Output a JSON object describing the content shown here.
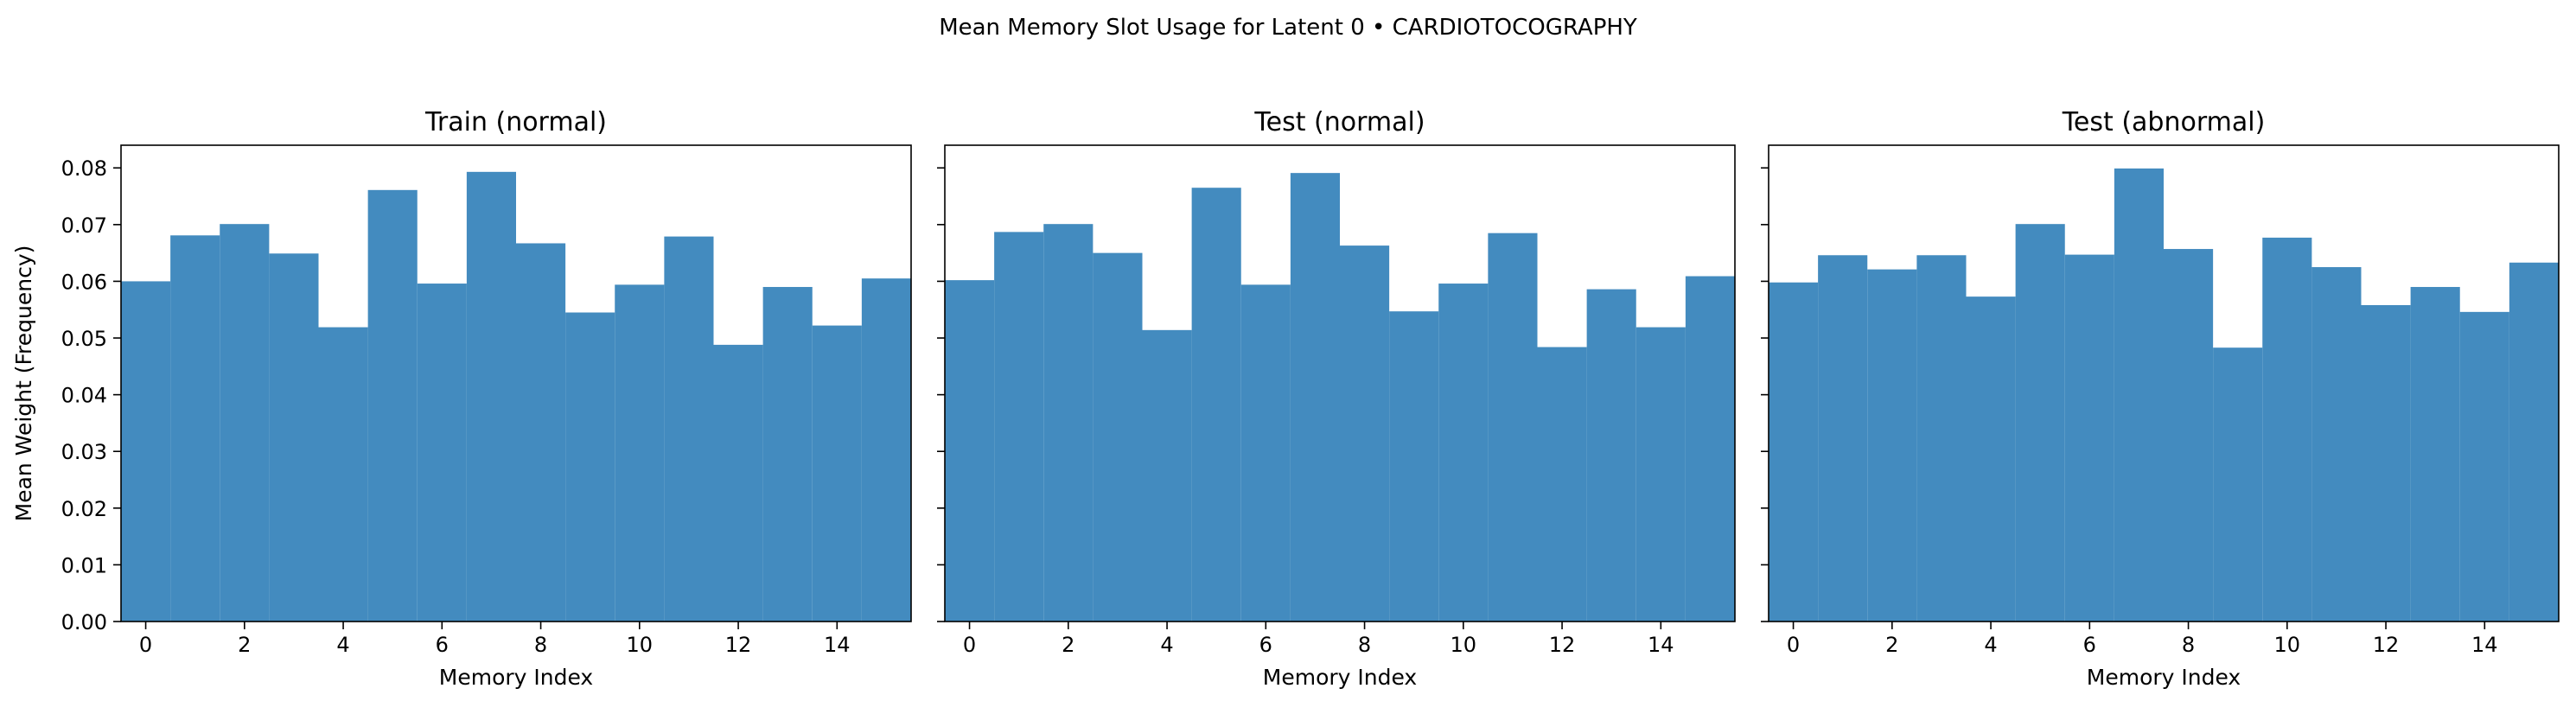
{
  "figure": {
    "suptitle": "Mean Memory Slot Usage for Latent 0 • CARDIOTOCOGRAPHY"
  },
  "chart_data": [
    {
      "type": "bar",
      "title": "Train (normal)",
      "xlabel": "Memory Index",
      "ylabel": "Mean Weight (Frequency)",
      "x": [
        0,
        1,
        2,
        3,
        4,
        5,
        6,
        7,
        8,
        9,
        10,
        11,
        12,
        13,
        14,
        15
      ],
      "values": [
        0.06,
        0.0681,
        0.0701,
        0.0649,
        0.0519,
        0.0761,
        0.0596,
        0.0793,
        0.0667,
        0.0545,
        0.0594,
        0.0679,
        0.0488,
        0.059,
        0.0522,
        0.0605
      ],
      "xlim": [
        -0.5,
        15.5
      ],
      "ylim": [
        0,
        0.084
      ],
      "xticks": [
        0,
        2,
        4,
        6,
        8,
        10,
        12,
        14
      ],
      "yticks": [
        "0.00",
        "0.01",
        "0.02",
        "0.03",
        "0.04",
        "0.05",
        "0.06",
        "0.07",
        "0.08"
      ],
      "color": "#438bbf",
      "grid": false
    },
    {
      "type": "bar",
      "title": "Test (normal)",
      "xlabel": "Memory Index",
      "ylabel": "",
      "x": [
        0,
        1,
        2,
        3,
        4,
        5,
        6,
        7,
        8,
        9,
        10,
        11,
        12,
        13,
        14,
        15
      ],
      "values": [
        0.0602,
        0.0687,
        0.0701,
        0.065,
        0.0514,
        0.0765,
        0.0594,
        0.0791,
        0.0663,
        0.0547,
        0.0596,
        0.0685,
        0.0484,
        0.0586,
        0.0519,
        0.0609
      ],
      "xlim": [
        -0.5,
        15.5
      ],
      "ylim": [
        0,
        0.084
      ],
      "xticks": [
        0,
        2,
        4,
        6,
        8,
        10,
        12,
        14
      ],
      "yticks": [
        "0.00",
        "0.01",
        "0.02",
        "0.03",
        "0.04",
        "0.05",
        "0.06",
        "0.07",
        "0.08"
      ],
      "color": "#438bbf",
      "grid": false
    },
    {
      "type": "bar",
      "title": "Test (abnormal)",
      "xlabel": "Memory Index",
      "ylabel": "",
      "x": [
        0,
        1,
        2,
        3,
        4,
        5,
        6,
        7,
        8,
        9,
        10,
        11,
        12,
        13,
        14,
        15
      ],
      "values": [
        0.0598,
        0.0646,
        0.0621,
        0.0646,
        0.0573,
        0.0701,
        0.0647,
        0.0799,
        0.0657,
        0.0483,
        0.0677,
        0.0625,
        0.0558,
        0.059,
        0.0546,
        0.0633
      ],
      "xlim": [
        -0.5,
        15.5
      ],
      "ylim": [
        0,
        0.084
      ],
      "xticks": [
        0,
        2,
        4,
        6,
        8,
        10,
        12,
        14
      ],
      "yticks": [
        "0.00",
        "0.01",
        "0.02",
        "0.03",
        "0.04",
        "0.05",
        "0.06",
        "0.07",
        "0.08"
      ],
      "color": "#438bbf",
      "grid": false
    }
  ]
}
